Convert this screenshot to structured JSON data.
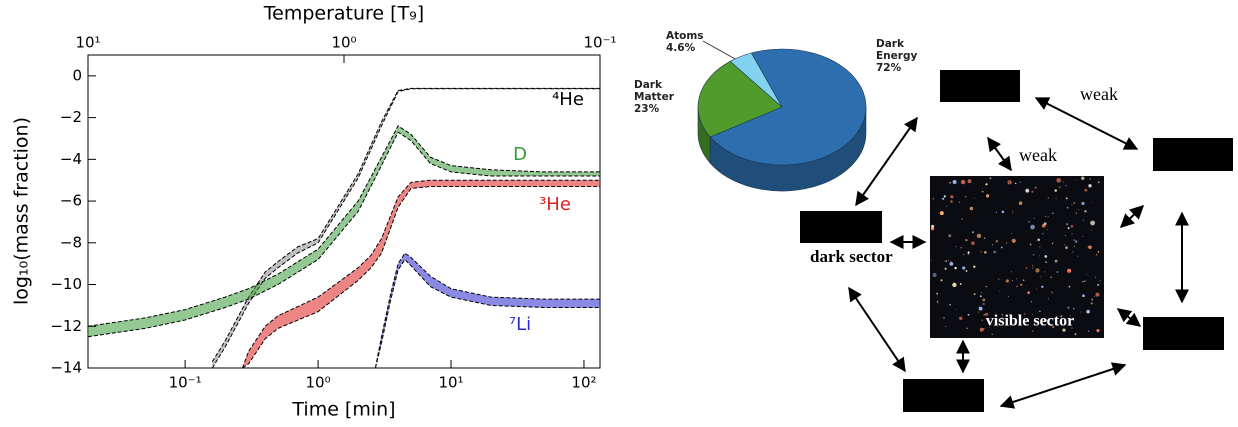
{
  "chart_data": [
    {
      "type": "line",
      "title": "Temperature [T₉]",
      "xlabel": "Time [min]",
      "ylabel": "log₁₀(mass fraction)",
      "log_x": true,
      "xlim": [
        0.0186,
        132
      ],
      "xticks": [
        {
          "value": 0.1,
          "label": "10⁻¹"
        },
        {
          "value": 1,
          "label": "10⁰"
        },
        {
          "value": 10,
          "label": "10¹"
        },
        {
          "value": 100,
          "label": "10²"
        }
      ],
      "x2lim": [
        10,
        0.1
      ],
      "x2ticks": [
        {
          "value": 10,
          "label": "10¹"
        },
        {
          "value": 1,
          "label": "10⁰"
        },
        {
          "value": 0.1,
          "label": "10⁻¹"
        }
      ],
      "ylim": [
        -14,
        1
      ],
      "yticks": [
        0,
        {
          "value": -2,
          "label": "−2"
        },
        {
          "value": -4,
          "label": "−4"
        },
        {
          "value": -6,
          "label": "−6"
        },
        {
          "value": -8,
          "label": "−8"
        },
        {
          "value": -10,
          "label": "−10"
        },
        {
          "value": -12,
          "label": "−12"
        },
        {
          "value": -14,
          "label": "−14"
        }
      ],
      "series": [
        {
          "name": "⁴He",
          "color": "#000000",
          "x": [
            0.16,
            0.2,
            0.3,
            0.4,
            0.5,
            0.7,
            1,
            2,
            3,
            4,
            5,
            10,
            132
          ],
          "high": [
            -13.7,
            -12.7,
            -10.6,
            -9.4,
            -8.9,
            -8.2,
            -7.8,
            -4.7,
            -2.2,
            -0.7,
            -0.6,
            -0.6,
            -0.6
          ],
          "low": [
            -14,
            -13.0,
            -10.9,
            -9.7,
            -9.2,
            -8.5,
            -8.0,
            -4.9,
            -2.4,
            -0.75,
            -0.62,
            -0.62,
            -0.62
          ]
        },
        {
          "name": "D",
          "color": "#3a9a3a",
          "x": [
            0.0186,
            0.05,
            0.1,
            0.2,
            0.3,
            0.5,
            1,
            2,
            3,
            4,
            5,
            7,
            10,
            20,
            50,
            132
          ],
          "high": [
            -12.0,
            -11.6,
            -11.2,
            -10.6,
            -10.2,
            -9.5,
            -8.3,
            -6.0,
            -3.9,
            -2.4,
            -2.8,
            -3.9,
            -4.3,
            -4.5,
            -4.6,
            -4.6
          ],
          "low": [
            -12.5,
            -12.1,
            -11.7,
            -11.1,
            -10.7,
            -10.0,
            -8.8,
            -6.5,
            -4.3,
            -2.7,
            -3.1,
            -4.2,
            -4.6,
            -4.8,
            -4.8,
            -4.8
          ]
        },
        {
          "name": "³He",
          "color": "#e02020",
          "x": [
            0.27,
            0.3,
            0.4,
            0.5,
            1,
            2,
            2.5,
            3,
            4,
            5,
            7,
            10,
            132
          ],
          "high": [
            -14,
            -13.2,
            -12.0,
            -11.5,
            -10.6,
            -9.2,
            -8.6,
            -7.8,
            -5.8,
            -5.1,
            -5.0,
            -5.0,
            -5.0
          ],
          "low": [
            -14,
            -13.8,
            -12.6,
            -12.1,
            -11.3,
            -9.8,
            -9.2,
            -8.5,
            -6.3,
            -5.4,
            -5.3,
            -5.3,
            -5.3
          ]
        },
        {
          "name": "⁷Li",
          "color": "#2a2ad0",
          "x": [
            2.7,
            3,
            3.5,
            4,
            4.5,
            5,
            7,
            10,
            20,
            50,
            132
          ],
          "high": [
            -14,
            -12.5,
            -10.5,
            -9.0,
            -8.5,
            -8.7,
            -9.6,
            -10.2,
            -10.6,
            -10.7,
            -10.7
          ],
          "low": [
            -14,
            -12.8,
            -10.8,
            -9.3,
            -8.8,
            -9.1,
            -10.1,
            -10.6,
            -11.0,
            -11.1,
            -11.1
          ]
        }
      ]
    },
    {
      "type": "pie",
      "categories": [
        "Dark Energy",
        "Dark Matter",
        "Atoms"
      ],
      "values": [
        72,
        23,
        4.6
      ],
      "value_labels": [
        "72%",
        "23%",
        "4.6%"
      ],
      "colors": [
        "#2d6fae",
        "#4f9c2c",
        "#82d2f0"
      ]
    }
  ],
  "diagram": {
    "weak_labels": [
      "weak",
      "weak"
    ],
    "dark_sector": "dark sector",
    "visible_sector": "visible sector"
  }
}
